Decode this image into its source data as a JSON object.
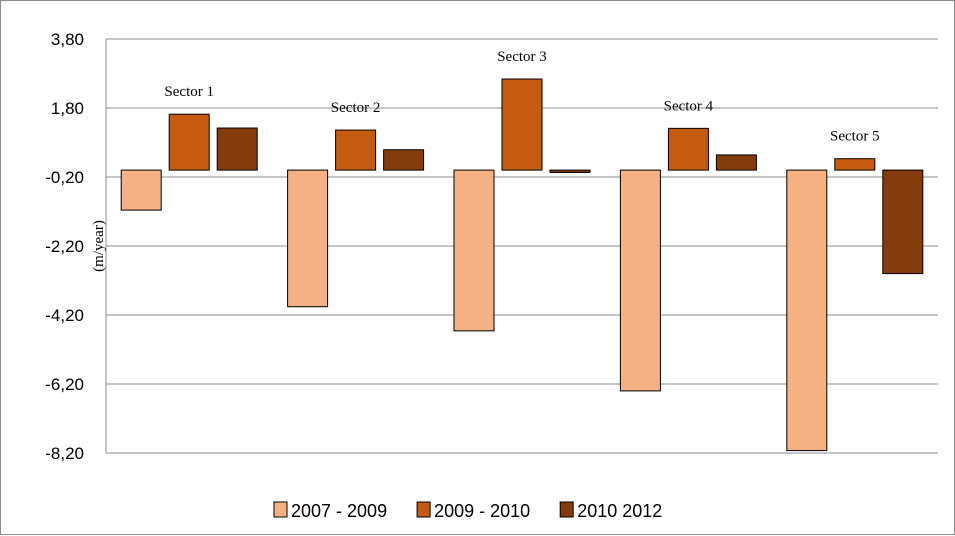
{
  "chart_data": {
    "type": "bar",
    "title": "",
    "xlabel": "",
    "ylabel": "(m/year)",
    "ylim": [
      -8.2,
      3.8
    ],
    "y_ticks": [
      3.8,
      1.8,
      -0.2,
      -2.2,
      -4.2,
      -6.2,
      -8.2
    ],
    "y_tick_labels": [
      "3,80",
      "1,80",
      "-0,20",
      "-2,20",
      "-4,20",
      "-6,20",
      "-8,20"
    ],
    "grid": true,
    "legend_position": "bottom",
    "categories": [
      "Sector 1",
      "Sector 2",
      "Sector 3",
      "Sector 4",
      "Sector 5"
    ],
    "series": [
      {
        "name": "2007 - 2009",
        "color": "#f4b183",
        "values": [
          -1.16,
          -3.96,
          -4.66,
          -6.4,
          -8.13
        ]
      },
      {
        "name": "2009 - 2010",
        "color": "#c55a11",
        "values": [
          1.62,
          1.16,
          2.64,
          1.21,
          0.33
        ]
      },
      {
        "name": "2010 2012",
        "color": "#843c0c",
        "values": [
          1.22,
          0.59,
          -0.07,
          0.44,
          -3.0
        ]
      }
    ]
  }
}
